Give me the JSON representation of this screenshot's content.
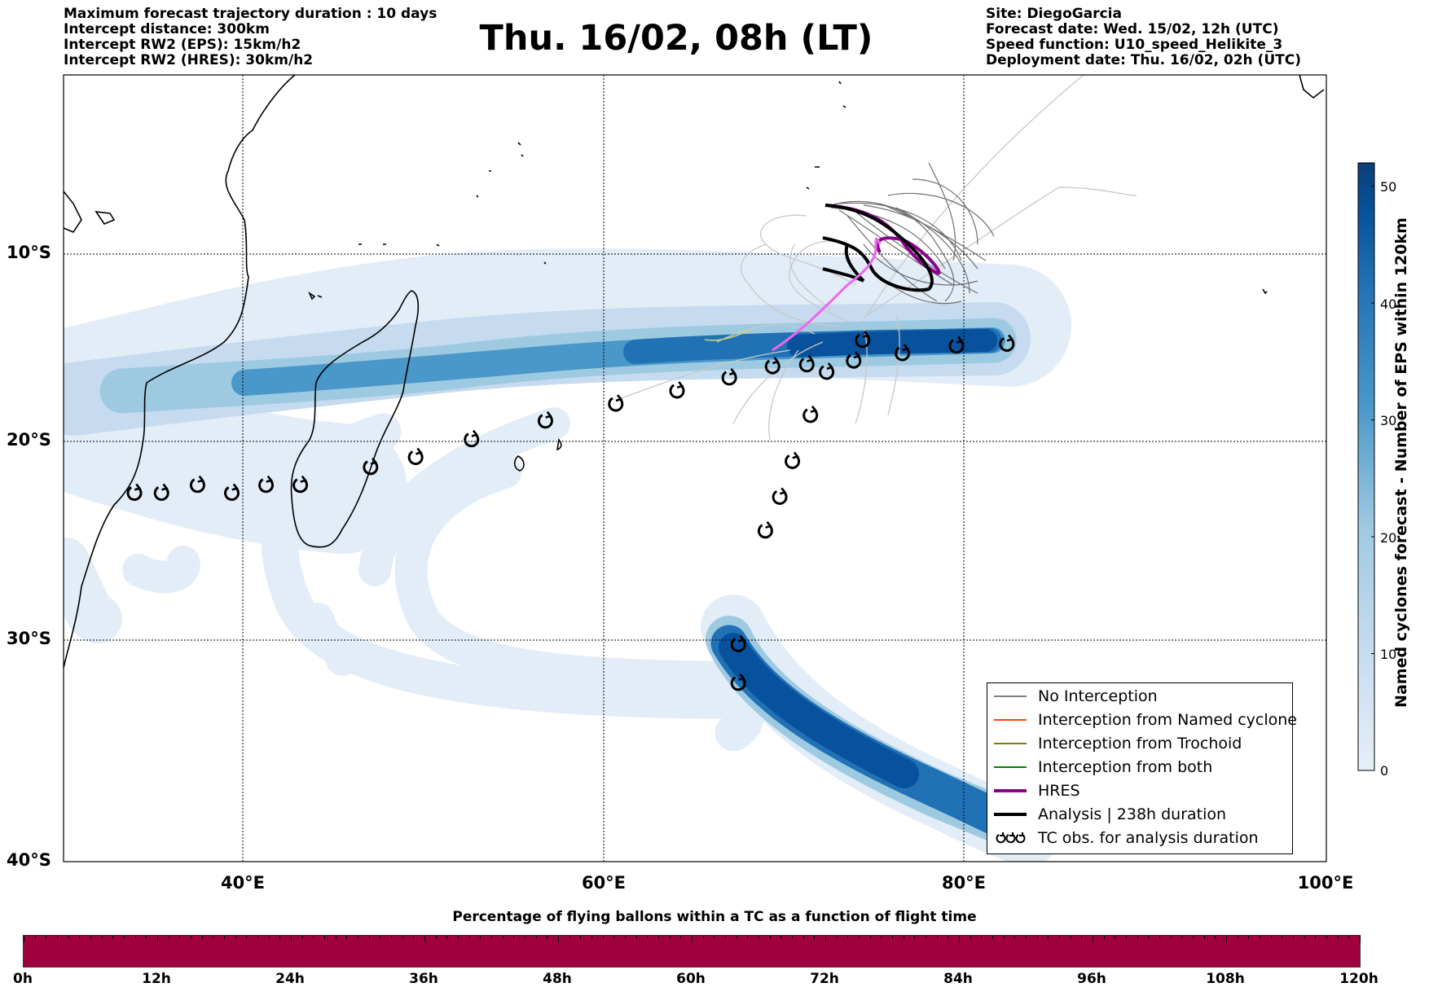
{
  "header_left": [
    "Maximum forecast trajectory duration : 10 days",
    "Intercept distance: 300km",
    "Intercept RW2 (EPS):  15km/h2",
    "Intercept RW2 (HRES): 30km/h2"
  ],
  "header_right": [
    "Site: DiegoGarcia",
    "Forecast date: Wed. 15/02, 12h (UTC)",
    "Speed function: U10_speed_Helikite_3",
    "Deployment date: Thu. 16/02, 02h (UTC)"
  ],
  "title": "Thu. 16/02, 08h (LT)",
  "map": {
    "lat_labels": [
      "10°S",
      "20°S",
      "30°S",
      "40°S"
    ],
    "lon_labels": [
      "40°E",
      "60°E",
      "80°E",
      "100°E"
    ],
    "lat_range": [
      -40,
      0.8
    ],
    "lon_range": [
      30,
      100
    ]
  },
  "colorbar": {
    "title": "Named cyclones forecast - Number of EPS within 120km",
    "ticks": [
      "0",
      "10",
      "20",
      "30",
      "40",
      "50"
    ],
    "range": [
      0,
      52
    ],
    "colors": [
      "#e6eff9",
      "#c6dbef",
      "#9ecae1",
      "#4a98c9",
      "#2171b5",
      "#08519c",
      "#0a3f79"
    ]
  },
  "legend": [
    {
      "label": "No Interception",
      "color": "#808080",
      "style": "thin"
    },
    {
      "label": "Interception from Named cyclone",
      "color": "#ff4500",
      "style": "thin"
    },
    {
      "label": "Interception from Trochoid",
      "color": "#808000",
      "style": "thin"
    },
    {
      "label": "Interception from both",
      "color": "#008000",
      "style": "thin"
    },
    {
      "label": "HRES",
      "color": "#8b008b",
      "style": "thick"
    },
    {
      "label": "Analysis | 238h duration",
      "color": "#000000",
      "style": "thick"
    },
    {
      "label": "TC obs. for analysis duration",
      "color": "#000000",
      "style": "symbol"
    }
  ],
  "tc_obs_positions": [
    {
      "lon": 34.0,
      "lat": -22.6
    },
    {
      "lon": 35.5,
      "lat": -22.6
    },
    {
      "lon": 37.5,
      "lat": -22.2
    },
    {
      "lon": 39.4,
      "lat": -22.6
    },
    {
      "lon": 41.3,
      "lat": -22.2
    },
    {
      "lon": 43.2,
      "lat": -22.2
    },
    {
      "lon": 47.1,
      "lat": -21.3
    },
    {
      "lon": 49.6,
      "lat": -20.8
    },
    {
      "lon": 52.7,
      "lat": -19.9
    },
    {
      "lon": 56.8,
      "lat": -18.9
    },
    {
      "lon": 60.7,
      "lat": -18.0
    },
    {
      "lon": 64.1,
      "lat": -17.3
    },
    {
      "lon": 67.0,
      "lat": -16.6
    },
    {
      "lon": 69.4,
      "lat": -16.0
    },
    {
      "lon": 71.3,
      "lat": -15.9
    },
    {
      "lon": 72.4,
      "lat": -16.3
    },
    {
      "lon": 73.9,
      "lat": -15.7
    },
    {
      "lon": 74.4,
      "lat": -14.6
    },
    {
      "lon": 76.6,
      "lat": -15.3
    },
    {
      "lon": 79.6,
      "lat": -14.9
    },
    {
      "lon": 82.4,
      "lat": -14.8
    },
    {
      "lon": 71.5,
      "lat": -18.6
    },
    {
      "lon": 70.5,
      "lat": -21.0
    },
    {
      "lon": 69.8,
      "lat": -22.8
    },
    {
      "lon": 69.0,
      "lat": -24.5
    },
    {
      "lon": 67.5,
      "lat": -30.2
    },
    {
      "lon": 67.5,
      "lat": -32.0
    }
  ],
  "bottom": {
    "title": "Percentage of flying ballons within a TC as a function of flight time",
    "bar_color": "#a0003d",
    "tick_labels": [
      "0h",
      "12h",
      "24h",
      "36h",
      "48h",
      "60h",
      "72h",
      "84h",
      "96h",
      "108h",
      "120h"
    ]
  }
}
